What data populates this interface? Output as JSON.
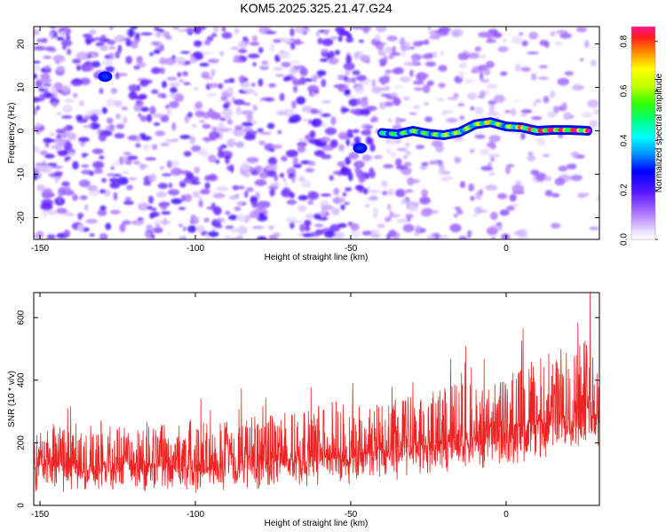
{
  "title": "KOM5.2025.325.21.47.G24",
  "chart_data": [
    {
      "type": "heatmap",
      "xlabel": "Height of straight line (km)",
      "ylabel": "Frequency (Hz)",
      "xlim": [
        -152,
        30
      ],
      "ylim": [
        -25,
        24
      ],
      "xticks": [
        -150,
        -100,
        -50,
        0
      ],
      "yticks": [
        -20,
        -10,
        0,
        10,
        20
      ],
      "colorbar": {
        "label": "Normalized spectral amplitude",
        "range": [
          0,
          0.86
        ],
        "ticks": [
          0.0,
          0.2,
          0.4,
          0.6,
          0.8
        ],
        "tick_labels": [
          "0.0",
          "0.2",
          "0.4",
          "0.6",
          "0.8"
        ]
      },
      "ridge": {
        "description": "strong narrow-band signal near 0 Hz",
        "points": [
          {
            "x": -40,
            "y": -0.5,
            "amp": 0.45
          },
          {
            "x": -35,
            "y": -0.8,
            "amp": 0.5
          },
          {
            "x": -30,
            "y": 0.0,
            "amp": 0.55
          },
          {
            "x": -25,
            "y": -0.7,
            "amp": 0.5
          },
          {
            "x": -20,
            "y": -1.0,
            "amp": 0.6
          },
          {
            "x": -15,
            "y": -0.3,
            "amp": 0.55
          },
          {
            "x": -10,
            "y": 1.5,
            "amp": 0.6
          },
          {
            "x": -5,
            "y": 2.0,
            "amp": 0.65
          },
          {
            "x": 0,
            "y": 1.0,
            "amp": 0.55
          },
          {
            "x": 5,
            "y": 0.8,
            "amp": 0.7
          },
          {
            "x": 10,
            "y": 0.0,
            "amp": 0.8
          },
          {
            "x": 15,
            "y": 0.2,
            "amp": 0.85
          },
          {
            "x": 20,
            "y": 0.2,
            "amp": 0.86
          },
          {
            "x": 27,
            "y": 0.0,
            "amp": 0.8
          }
        ]
      },
      "isolated_peaks": [
        {
          "x": -129,
          "y": 12.5,
          "amp": 0.3
        },
        {
          "x": -47,
          "y": -4.0,
          "amp": 0.3
        }
      ]
    },
    {
      "type": "line",
      "xlabel": "Height of straight line (km)",
      "ylabel": "SNR (10 * v/v)",
      "xlim": [
        -152,
        30
      ],
      "ylim": [
        0,
        680
      ],
      "xticks": [
        -150,
        -100,
        -50,
        0
      ],
      "yticks": [
        0,
        200,
        400,
        600
      ],
      "series": [
        {
          "name": "SNR",
          "color": "#ee2222",
          "trend_x": [
            -152,
            -120,
            -100,
            -80,
            -60,
            -40,
            -20,
            0,
            20,
            30
          ],
          "trend_median": [
            130,
            130,
            130,
            140,
            160,
            175,
            200,
            230,
            290,
            320
          ],
          "trend_upper": [
            260,
            270,
            265,
            285,
            330,
            340,
            380,
            420,
            520,
            560
          ],
          "trend_lower": [
            30,
            40,
            30,
            40,
            60,
            70,
            90,
            120,
            150,
            170
          ],
          "max_point": {
            "x": 27,
            "y": 680
          }
        }
      ]
    }
  ],
  "colors": {
    "signal": "#ee2222",
    "background": "#ffffff",
    "noise": "#7a2dff"
  }
}
